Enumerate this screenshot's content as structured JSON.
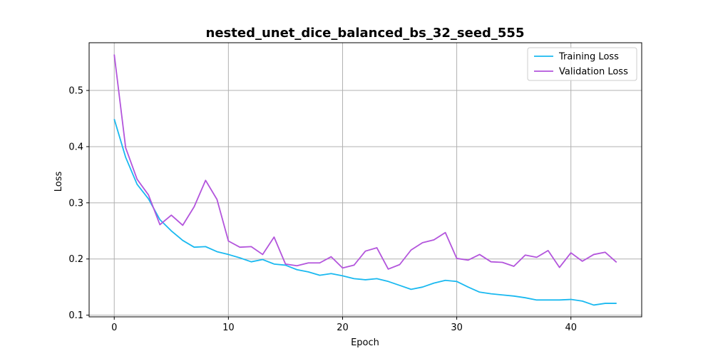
{
  "chart_data": {
    "type": "line",
    "title": "nested_unet_dice_balanced_bs_32_seed_555",
    "xlabel": "Epoch",
    "ylabel": "Loss",
    "xlim": [
      -2.2,
      46.2
    ],
    "ylim": [
      0.097,
      0.585
    ],
    "xticks": [
      0,
      10,
      20,
      30,
      40
    ],
    "yticks": [
      0.1,
      0.2,
      0.3,
      0.4,
      0.5
    ],
    "grid": true,
    "legend_position": "top-right",
    "x": [
      0,
      1,
      2,
      3,
      4,
      5,
      6,
      7,
      8,
      9,
      10,
      11,
      12,
      13,
      14,
      15,
      16,
      17,
      18,
      19,
      20,
      21,
      22,
      23,
      24,
      25,
      26,
      27,
      28,
      29,
      30,
      31,
      32,
      33,
      34,
      35,
      36,
      37,
      38,
      39,
      40,
      41,
      42,
      43,
      44
    ],
    "series": [
      {
        "name": "Training Loss",
        "color": "#1ab9f0",
        "values": [
          0.449,
          0.381,
          0.333,
          0.307,
          0.27,
          0.25,
          0.233,
          0.221,
          0.222,
          0.213,
          0.208,
          0.202,
          0.195,
          0.199,
          0.191,
          0.189,
          0.181,
          0.177,
          0.171,
          0.174,
          0.17,
          0.165,
          0.163,
          0.165,
          0.16,
          0.153,
          0.146,
          0.15,
          0.157,
          0.162,
          0.16,
          0.15,
          0.141,
          0.138,
          0.136,
          0.134,
          0.131,
          0.127,
          0.127,
          0.127,
          0.128,
          0.125,
          0.118,
          0.121,
          0.121
        ]
      },
      {
        "name": "Validation Loss",
        "color": "#b355dc",
        "values": [
          0.564,
          0.398,
          0.342,
          0.314,
          0.261,
          0.278,
          0.26,
          0.293,
          0.34,
          0.306,
          0.232,
          0.221,
          0.222,
          0.208,
          0.239,
          0.191,
          0.188,
          0.193,
          0.193,
          0.204,
          0.184,
          0.189,
          0.214,
          0.22,
          0.182,
          0.19,
          0.216,
          0.229,
          0.234,
          0.247,
          0.201,
          0.198,
          0.208,
          0.195,
          0.194,
          0.187,
          0.207,
          0.203,
          0.215,
          0.185,
          0.211,
          0.196,
          0.208,
          0.212,
          0.194
        ]
      }
    ]
  }
}
